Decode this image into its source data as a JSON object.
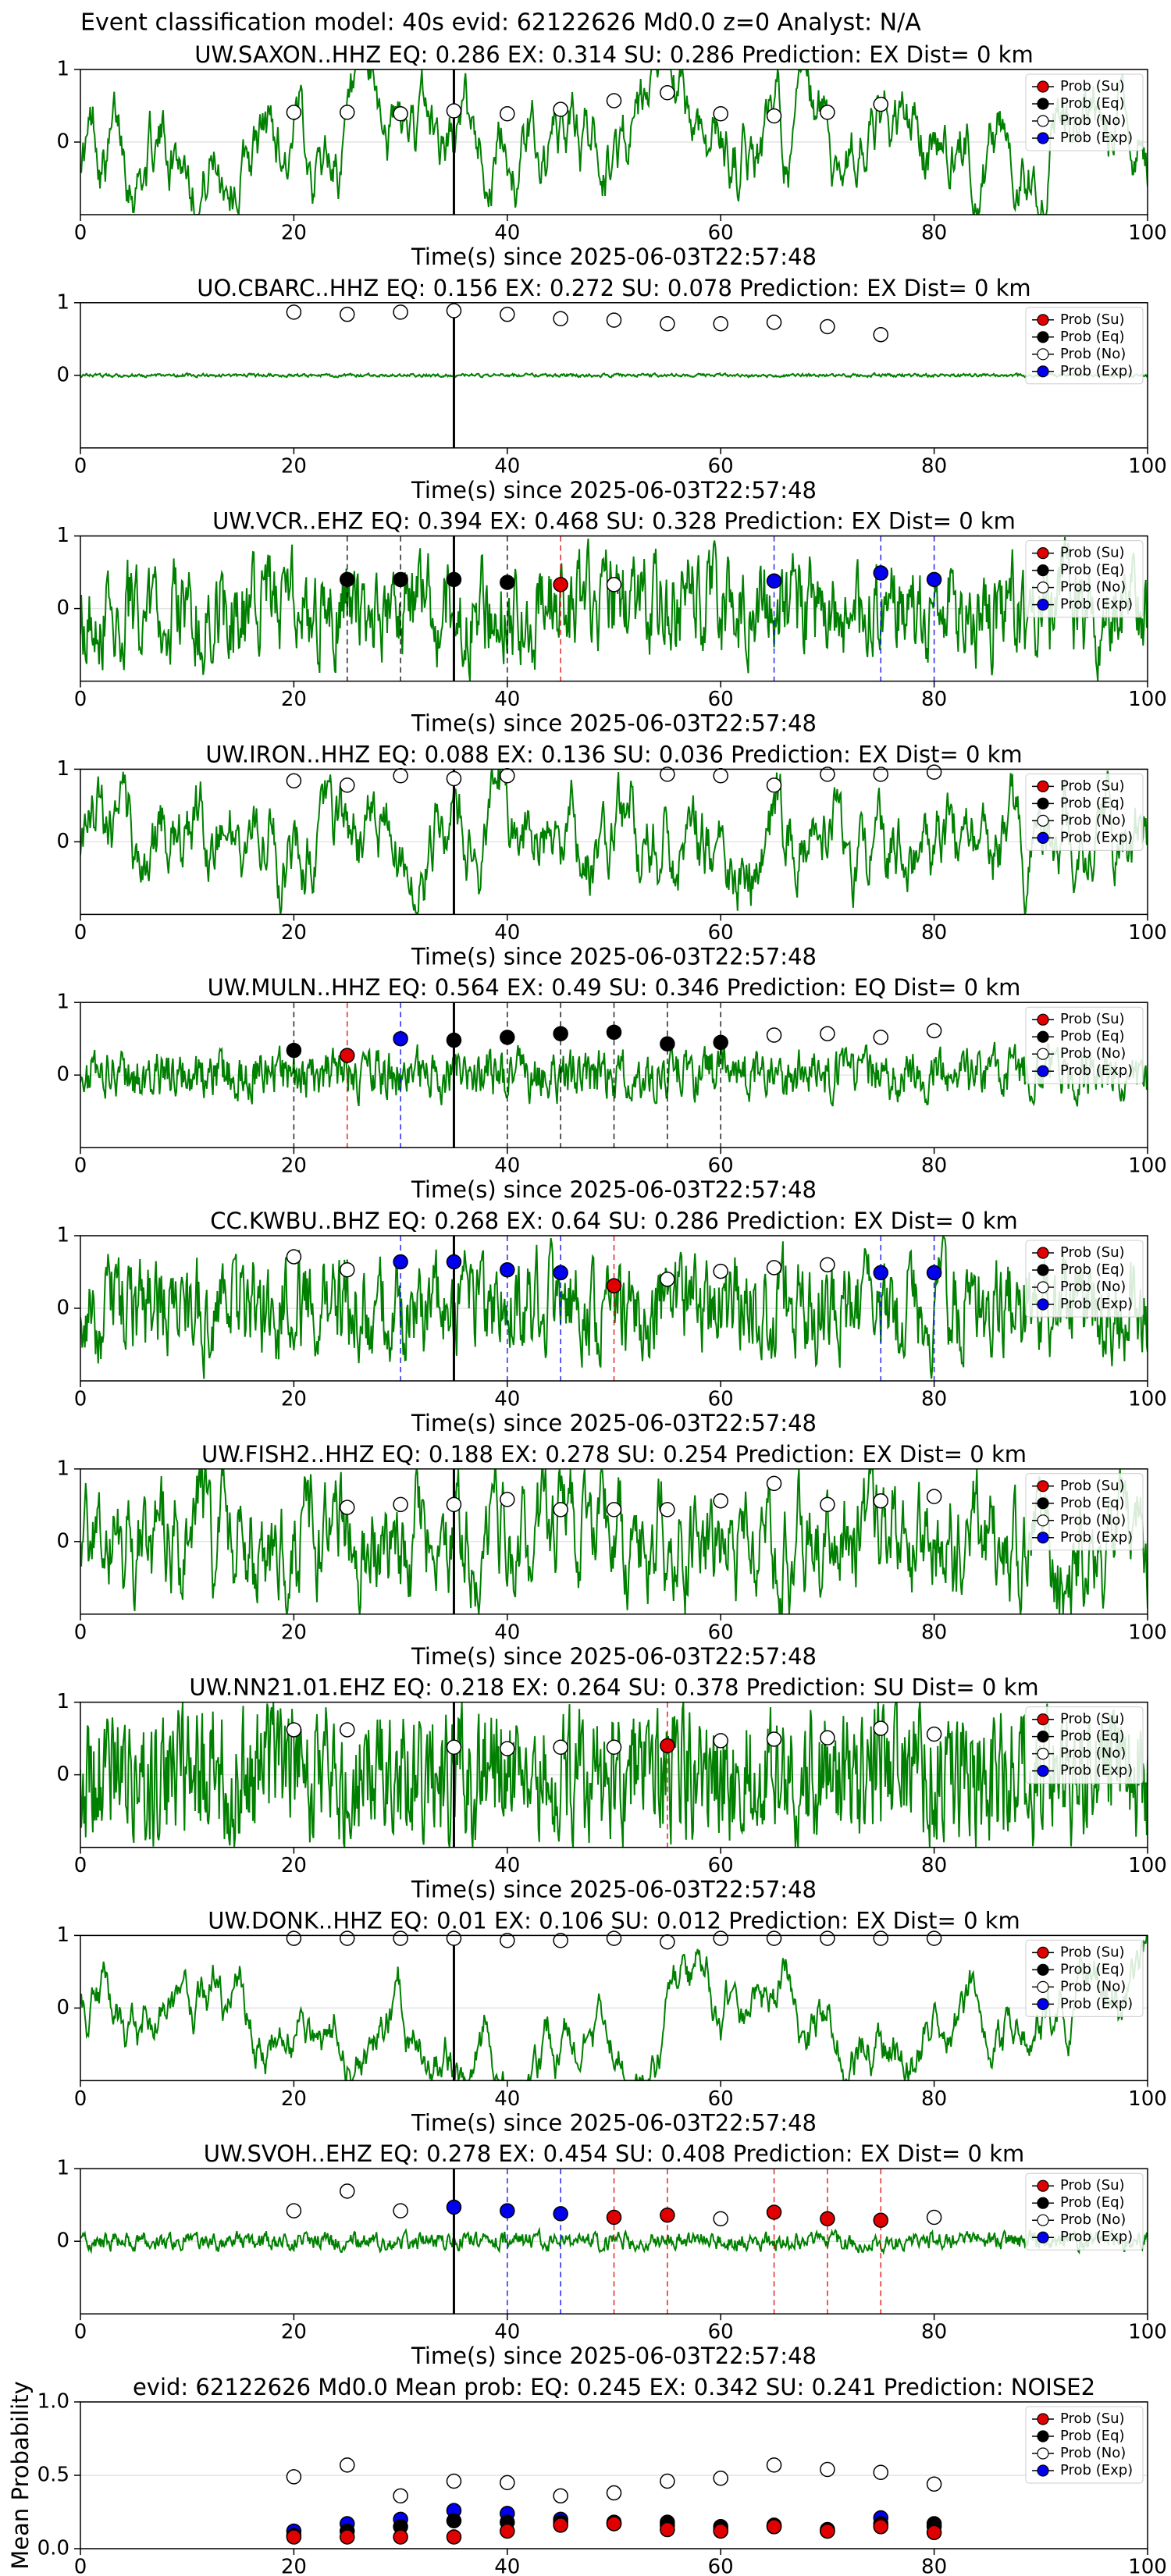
{
  "title": "Event classification model: 40s evid: 62122626 Md0.0 z=0 Analyst: N/A",
  "chart_data": [
    {
      "type": "waveform",
      "title": "UW.SAXON..HHZ   EQ: 0.286  EX: 0.314  SU: 0.286   Prediction: EX    Dist= 0 km",
      "xlabel": "Time(s) since 2025-06-03T22:57:48",
      "xlim": [
        0,
        100
      ],
      "xticks": [
        0,
        20,
        40,
        60,
        80,
        100
      ],
      "ylim": [
        -1,
        1
      ],
      "yticks": [
        0,
        1
      ],
      "grid": true,
      "pick_x": 35,
      "legend": "upper right",
      "series": [
        {
          "name": "Prob (Su)",
          "color": "#e00000",
          "dashed": true,
          "x": [],
          "values": []
        },
        {
          "name": "Prob (Eq)",
          "color": "#000000",
          "dashed": true,
          "x": [],
          "values": []
        },
        {
          "name": "Prob (No)",
          "color": "#ffffff",
          "dashed": false,
          "x": [
            20,
            25,
            30,
            35,
            40,
            45,
            50,
            55,
            60,
            65,
            70,
            75
          ],
          "values": [
            0.41,
            0.41,
            0.39,
            0.43,
            0.39,
            0.45,
            0.57,
            0.68,
            0.39,
            0.36,
            0.41,
            0.52
          ]
        },
        {
          "name": "Prob (Exp)",
          "color": "#0000ee",
          "dashed": true,
          "x": [],
          "values": []
        }
      ]
    },
    {
      "type": "waveform",
      "title": "UO.CBARC..HHZ   EQ: 0.156  EX: 0.272  SU: 0.078   Prediction: EX    Dist= 0 km",
      "xlabel": "Time(s) since 2025-06-03T22:57:48",
      "xlim": [
        0,
        100
      ],
      "xticks": [
        0,
        20,
        40,
        60,
        80,
        100
      ],
      "ylim": [
        -1,
        1
      ],
      "yticks": [
        0,
        1
      ],
      "grid": true,
      "pick_x": 35,
      "legend": "upper right",
      "series": [
        {
          "name": "Prob (Su)",
          "color": "#e00000",
          "dashed": true,
          "x": [],
          "values": []
        },
        {
          "name": "Prob (Eq)",
          "color": "#000000",
          "dashed": true,
          "x": [],
          "values": []
        },
        {
          "name": "Prob (No)",
          "color": "#ffffff",
          "dashed": false,
          "x": [
            20,
            25,
            30,
            35,
            40,
            45,
            50,
            55,
            60,
            65,
            70,
            75
          ],
          "values": [
            0.87,
            0.84,
            0.87,
            0.89,
            0.84,
            0.78,
            0.76,
            0.71,
            0.71,
            0.73,
            0.67,
            0.56
          ]
        },
        {
          "name": "Prob (Exp)",
          "color": "#0000ee",
          "dashed": true,
          "x": [],
          "values": []
        }
      ]
    },
    {
      "type": "waveform",
      "title": "UW.VCR..EHZ   EQ: 0.394  EX: 0.468  SU: 0.328   Prediction: EX    Dist= 0 km",
      "xlabel": "Time(s) since 2025-06-03T22:57:48",
      "xlim": [
        0,
        100
      ],
      "xticks": [
        0,
        20,
        40,
        60,
        80,
        100
      ],
      "ylim": [
        -1,
        1
      ],
      "yticks": [
        0,
        1
      ],
      "grid": true,
      "pick_x": 35,
      "legend": "upper right",
      "series": [
        {
          "name": "Prob (Su)",
          "color": "#e00000",
          "dashed": true,
          "x": [
            45
          ],
          "values": [
            0.33
          ]
        },
        {
          "name": "Prob (Eq)",
          "color": "#000000",
          "dashed": true,
          "x": [
            25,
            30,
            35,
            40
          ],
          "values": [
            0.4,
            0.4,
            0.4,
            0.36
          ]
        },
        {
          "name": "Prob (No)",
          "color": "#ffffff",
          "dashed": false,
          "x": [
            50
          ],
          "values": [
            0.33
          ]
        },
        {
          "name": "Prob (Exp)",
          "color": "#0000ee",
          "dashed": true,
          "x": [
            65,
            75,
            80
          ],
          "values": [
            0.38,
            0.49,
            0.4
          ]
        }
      ]
    },
    {
      "type": "waveform",
      "title": "UW.IRON..HHZ   EQ: 0.088  EX: 0.136  SU: 0.036   Prediction: EX    Dist= 0 km",
      "xlabel": "Time(s) since 2025-06-03T22:57:48",
      "xlim": [
        0,
        100
      ],
      "xticks": [
        0,
        20,
        40,
        60,
        80,
        100
      ],
      "ylim": [
        -1,
        1
      ],
      "yticks": [
        0,
        1
      ],
      "grid": true,
      "pick_x": 35,
      "legend": "upper right",
      "series": [
        {
          "name": "Prob (Su)",
          "color": "#e00000",
          "dashed": true,
          "x": [],
          "values": []
        },
        {
          "name": "Prob (Eq)",
          "color": "#000000",
          "dashed": true,
          "x": [],
          "values": []
        },
        {
          "name": "Prob (No)",
          "color": "#ffffff",
          "dashed": false,
          "x": [
            20,
            25,
            30,
            35,
            40,
            55,
            60,
            65,
            70,
            75,
            80
          ],
          "values": [
            0.84,
            0.78,
            0.91,
            0.87,
            0.91,
            0.93,
            0.91,
            0.78,
            0.93,
            0.93,
            0.96
          ]
        },
        {
          "name": "Prob (Exp)",
          "color": "#0000ee",
          "dashed": true,
          "x": [],
          "values": []
        }
      ]
    },
    {
      "type": "waveform",
      "title": "UW.MULN..HHZ   EQ: 0.564  EX: 0.49  SU: 0.346   Prediction: EQ    Dist= 0 km",
      "xlabel": "Time(s) since 2025-06-03T22:57:48",
      "xlim": [
        0,
        100
      ],
      "xticks": [
        0,
        20,
        40,
        60,
        80,
        100
      ],
      "ylim": [
        -1,
        1
      ],
      "yticks": [
        0,
        1
      ],
      "grid": true,
      "pick_x": 35,
      "legend": "upper right",
      "series": [
        {
          "name": "Prob (Su)",
          "color": "#e00000",
          "dashed": true,
          "x": [
            25
          ],
          "values": [
            0.27
          ]
        },
        {
          "name": "Prob (Eq)",
          "color": "#000000",
          "dashed": true,
          "x": [
            20,
            35,
            40,
            45,
            50,
            55,
            60
          ],
          "values": [
            0.34,
            0.48,
            0.52,
            0.57,
            0.59,
            0.43,
            0.45
          ]
        },
        {
          "name": "Prob (No)",
          "color": "#ffffff",
          "dashed": false,
          "x": [
            65,
            70,
            75,
            80
          ],
          "values": [
            0.55,
            0.57,
            0.52,
            0.61
          ]
        },
        {
          "name": "Prob (Exp)",
          "color": "#0000ee",
          "dashed": true,
          "x": [
            30
          ],
          "values": [
            0.5
          ]
        }
      ]
    },
    {
      "type": "waveform",
      "title": "CC.KWBU..BHZ   EQ: 0.268  EX: 0.64  SU: 0.286   Prediction: EX    Dist= 0 km",
      "xlabel": "Time(s) since 2025-06-03T22:57:48",
      "xlim": [
        0,
        100
      ],
      "xticks": [
        0,
        20,
        40,
        60,
        80,
        100
      ],
      "ylim": [
        -1,
        1
      ],
      "yticks": [
        0,
        1
      ],
      "grid": true,
      "pick_x": 35,
      "legend": "upper right",
      "series": [
        {
          "name": "Prob (Su)",
          "color": "#e00000",
          "dashed": true,
          "x": [
            50
          ],
          "values": [
            0.31
          ]
        },
        {
          "name": "Prob (Eq)",
          "color": "#000000",
          "dashed": true,
          "x": [],
          "values": []
        },
        {
          "name": "Prob (No)",
          "color": "#ffffff",
          "dashed": false,
          "x": [
            20,
            25,
            55,
            60,
            65,
            70
          ],
          "values": [
            0.71,
            0.53,
            0.4,
            0.51,
            0.56,
            0.6
          ]
        },
        {
          "name": "Prob (Exp)",
          "color": "#0000ee",
          "dashed": true,
          "x": [
            30,
            35,
            40,
            45,
            75,
            80
          ],
          "values": [
            0.64,
            0.64,
            0.53,
            0.49,
            0.49,
            0.49
          ]
        }
      ]
    },
    {
      "type": "waveform",
      "title": "UW.FISH2..HHZ   EQ: 0.188  EX: 0.278  SU: 0.254   Prediction: EX    Dist= 0 km",
      "xlabel": "Time(s) since 2025-06-03T22:57:48",
      "xlim": [
        0,
        100
      ],
      "xticks": [
        0,
        20,
        40,
        60,
        80,
        100
      ],
      "ylim": [
        -1,
        1
      ],
      "yticks": [
        0,
        1
      ],
      "grid": true,
      "pick_x": 35,
      "legend": "upper right",
      "series": [
        {
          "name": "Prob (Su)",
          "color": "#e00000",
          "dashed": true,
          "x": [],
          "values": []
        },
        {
          "name": "Prob (Eq)",
          "color": "#000000",
          "dashed": true,
          "x": [],
          "values": []
        },
        {
          "name": "Prob (No)",
          "color": "#ffffff",
          "dashed": false,
          "x": [
            25,
            30,
            35,
            40,
            45,
            50,
            55,
            60,
            65,
            70,
            75,
            80
          ],
          "values": [
            0.47,
            0.51,
            0.51,
            0.58,
            0.44,
            0.44,
            0.44,
            0.56,
            0.8,
            0.51,
            0.56,
            0.62
          ]
        },
        {
          "name": "Prob (Exp)",
          "color": "#0000ee",
          "dashed": true,
          "x": [],
          "values": []
        }
      ]
    },
    {
      "type": "waveform",
      "title": "UW.NN21.01.EHZ   EQ: 0.218  EX: 0.264  SU: 0.378   Prediction: SU    Dist= 0 km",
      "xlabel": "Time(s) since 2025-06-03T22:57:48",
      "xlim": [
        0,
        100
      ],
      "xticks": [
        0,
        20,
        40,
        60,
        80,
        100
      ],
      "ylim": [
        -1,
        1
      ],
      "yticks": [
        0,
        1
      ],
      "grid": true,
      "pick_x": 35,
      "legend": "upper right",
      "series": [
        {
          "name": "Prob (Su)",
          "color": "#e00000",
          "dashed": true,
          "x": [
            55
          ],
          "values": [
            0.4
          ]
        },
        {
          "name": "Prob (Eq)",
          "color": "#000000",
          "dashed": true,
          "x": [],
          "values": []
        },
        {
          "name": "Prob (No)",
          "color": "#ffffff",
          "dashed": false,
          "x": [
            20,
            25,
            35,
            40,
            45,
            50,
            60,
            65,
            70,
            75,
            80
          ],
          "values": [
            0.62,
            0.62,
            0.38,
            0.36,
            0.38,
            0.38,
            0.47,
            0.49,
            0.51,
            0.64,
            0.56
          ]
        },
        {
          "name": "Prob (Exp)",
          "color": "#0000ee",
          "dashed": true,
          "x": [],
          "values": []
        }
      ]
    },
    {
      "type": "waveform",
      "title": "UW.DONK..HHZ   EQ: 0.01  EX: 0.106  SU: 0.012   Prediction: EX    Dist= 0 km",
      "xlabel": "Time(s) since 2025-06-03T22:57:48",
      "xlim": [
        0,
        100
      ],
      "xticks": [
        0,
        20,
        40,
        60,
        80,
        100
      ],
      "ylim": [
        -1,
        1
      ],
      "yticks": [
        0,
        1
      ],
      "grid": true,
      "pick_x": 35,
      "legend": "upper right",
      "series": [
        {
          "name": "Prob (Su)",
          "color": "#e00000",
          "dashed": true,
          "x": [],
          "values": []
        },
        {
          "name": "Prob (Eq)",
          "color": "#000000",
          "dashed": true,
          "x": [],
          "values": []
        },
        {
          "name": "Prob (No)",
          "color": "#ffffff",
          "dashed": false,
          "x": [
            20,
            25,
            30,
            35,
            40,
            45,
            50,
            55,
            60,
            65,
            70,
            75,
            80
          ],
          "values": [
            0.96,
            0.96,
            0.96,
            0.96,
            0.93,
            0.93,
            0.96,
            0.91,
            0.96,
            0.96,
            0.96,
            0.96,
            0.96
          ]
        },
        {
          "name": "Prob (Exp)",
          "color": "#0000ee",
          "dashed": true,
          "x": [],
          "values": []
        }
      ]
    },
    {
      "type": "waveform",
      "title": "UW.SVOH..EHZ   EQ: 0.278  EX: 0.454  SU: 0.408   Prediction: EX    Dist= 0 km",
      "xlabel": "Time(s) since 2025-06-03T22:57:48",
      "xlim": [
        0,
        100
      ],
      "xticks": [
        0,
        20,
        40,
        60,
        80,
        100
      ],
      "ylim": [
        -1,
        1
      ],
      "yticks": [
        0,
        1
      ],
      "grid": true,
      "pick_x": 35,
      "legend": "upper right",
      "series": [
        {
          "name": "Prob (Su)",
          "color": "#e00000",
          "dashed": true,
          "x": [
            50,
            55,
            65,
            70,
            75
          ],
          "values": [
            0.33,
            0.36,
            0.4,
            0.31,
            0.29
          ]
        },
        {
          "name": "Prob (Eq)",
          "color": "#000000",
          "dashed": true,
          "x": [],
          "values": []
        },
        {
          "name": "Prob (No)",
          "color": "#ffffff",
          "dashed": false,
          "x": [
            20,
            25,
            30,
            60,
            80
          ],
          "values": [
            0.42,
            0.69,
            0.42,
            0.31,
            0.33
          ]
        },
        {
          "name": "Prob (Exp)",
          "color": "#0000ee",
          "dashed": true,
          "x": [
            35,
            40,
            45
          ],
          "values": [
            0.47,
            0.42,
            0.38
          ]
        }
      ]
    },
    {
      "type": "scatter",
      "title": "evid: 62122626  Md0.0   Mean prob:   EQ: 0.245  EX: 0.342  SU: 0.241   Prediction: NOISE2",
      "ylabel": "Mean Probability",
      "xlim": [
        0,
        100
      ],
      "xticks": [
        0,
        20,
        40,
        60,
        80,
        100
      ],
      "ylim": [
        0,
        1
      ],
      "yticks": [
        {
          "value": 0,
          "label": "0.0"
        },
        {
          "value": 0.5,
          "label": "0.5"
        },
        {
          "value": 1,
          "label": "1.0"
        }
      ],
      "grid": true,
      "legend": "upper right",
      "series": [
        {
          "name": "Prob (Su)",
          "color": "#e00000",
          "dashed": false,
          "x": [
            20,
            25,
            30,
            35,
            40,
            45,
            50,
            55,
            60,
            65,
            70,
            75,
            80
          ],
          "values": [
            0.08,
            0.08,
            0.08,
            0.08,
            0.12,
            0.16,
            0.17,
            0.13,
            0.12,
            0.15,
            0.12,
            0.15,
            0.11
          ]
        },
        {
          "name": "Prob (Eq)",
          "color": "#000000",
          "dashed": false,
          "x": [
            20,
            25,
            30,
            35,
            40,
            45,
            50,
            55,
            60,
            65,
            70,
            75,
            80
          ],
          "values": [
            0.09,
            0.12,
            0.15,
            0.19,
            0.18,
            0.18,
            0.18,
            0.18,
            0.15,
            0.16,
            0.13,
            0.17,
            0.17
          ]
        },
        {
          "name": "Prob (No)",
          "color": "#ffffff",
          "dashed": false,
          "x": [
            20,
            25,
            30,
            35,
            40,
            45,
            50,
            55,
            60,
            65,
            70,
            75,
            80
          ],
          "values": [
            0.49,
            0.57,
            0.36,
            0.46,
            0.45,
            0.36,
            0.38,
            0.46,
            0.48,
            0.57,
            0.54,
            0.52,
            0.44
          ]
        },
        {
          "name": "Prob (Exp)",
          "color": "#0000ee",
          "dashed": false,
          "x": [
            20,
            25,
            30,
            35,
            40,
            45,
            50,
            55,
            60,
            65,
            70,
            75,
            80
          ],
          "values": [
            0.12,
            0.17,
            0.2,
            0.26,
            0.24,
            0.2,
            0.17,
            0.16,
            0.13,
            0.15,
            0.12,
            0.21,
            0.15
          ]
        }
      ]
    }
  ]
}
